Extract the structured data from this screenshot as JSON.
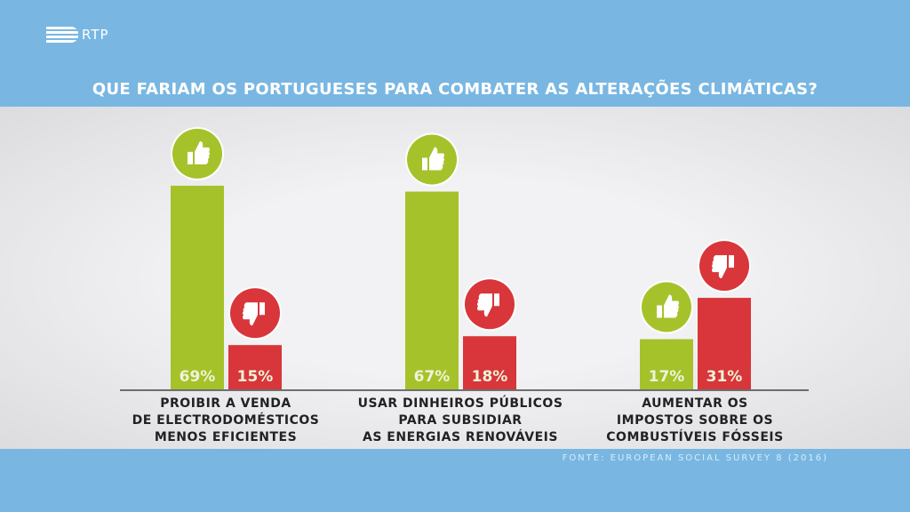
{
  "logo": "RTP",
  "chart_data": {
    "type": "bar",
    "title": "QUE FARIAM OS PORTUGUESES PARA COMBATER AS ALTERAÇÕES CLIMÁTICAS?",
    "categories": [
      [
        "PROIBIR A VENDA",
        "DE ELECTRODOMÉSTICOS",
        "MENOS EFICIENTES"
      ],
      [
        "USAR DINHEIROS PÚBLICOS",
        "PARA SUBSIDIAR",
        "AS ENERGIAS RENOVÁVEIS"
      ],
      [
        "AUMENTAR OS",
        "IMPOSTOS SOBRE OS",
        "COMBUSTÍVEIS FÓSSEIS"
      ]
    ],
    "series": [
      {
        "icon": "thumbs-up-icon",
        "color": "#a6c22b",
        "values": [
          69,
          67,
          17
        ],
        "labels": [
          "69%",
          "67%",
          "17%"
        ]
      },
      {
        "icon": "thumbs-down-icon",
        "color": "#d8363a",
        "values": [
          15,
          18,
          31
        ],
        "labels": [
          "15%",
          "18%",
          "31%"
        ]
      }
    ],
    "ylim": [
      0,
      100
    ],
    "source": "FONTE: EUROPEAN SOCIAL SURVEY 8 (2016)"
  }
}
